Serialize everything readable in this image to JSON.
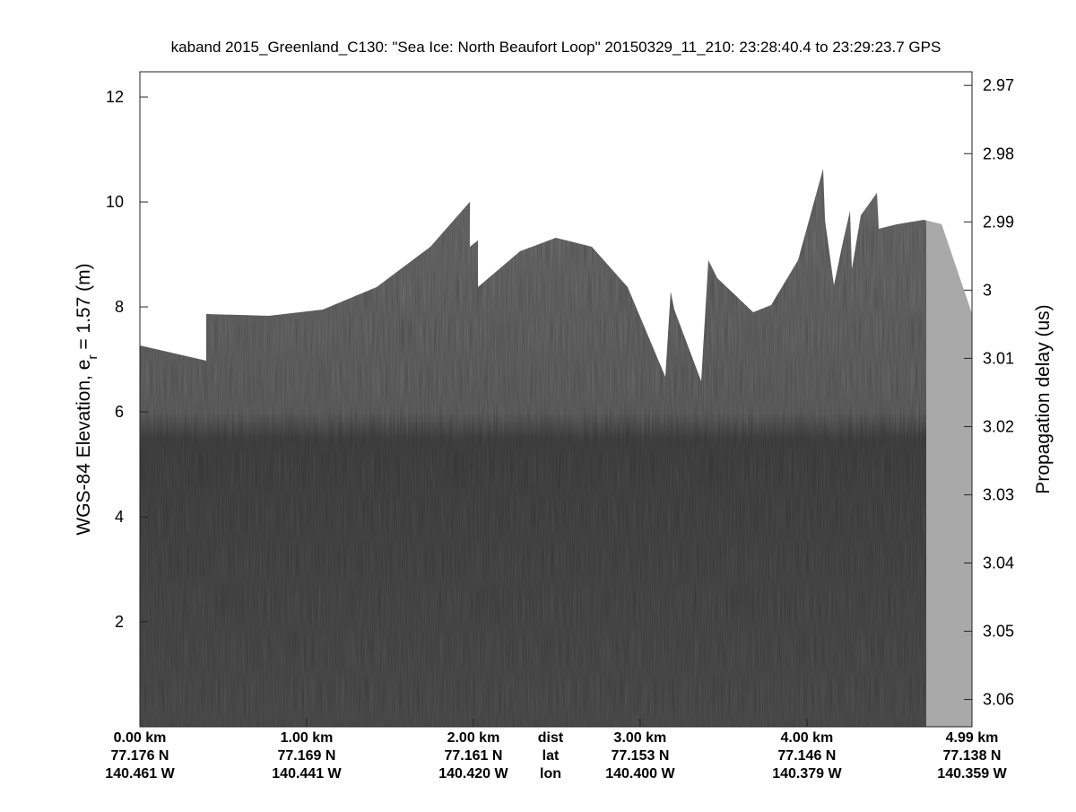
{
  "chart_data": {
    "type": "radargram",
    "title": "kaband 2015_Greenland_C130: \"Sea Ice: North Beaufort Loop\"  20150329_11_210: 23:28:40.4 to 23:29:23.7 GPS",
    "ylabel": {
      "prefix": "WGS-84 Elevation, e",
      "sub": "r",
      "suffix": " = 1.57 (m)"
    },
    "y2label": "Propagation delay (us)",
    "xlim": [
      0,
      4.99
    ],
    "xticks": [
      {
        "value": 0,
        "label": "0.00 km"
      },
      {
        "value": 1,
        "label": "1.00 km"
      },
      {
        "value": 2,
        "label": "2.00 km"
      },
      {
        "value": 3,
        "label": "3.00 km"
      },
      {
        "value": 4,
        "label": "4.00 km"
      },
      {
        "value": 4.99,
        "label": "4.99 km"
      }
    ],
    "xtick_lat": [
      "77.176 N",
      "77.169 N",
      "77.161 N",
      "77.153 N",
      "77.146 N",
      "77.138 N"
    ],
    "xtick_lon": [
      "140.461 W",
      "140.441 W",
      "140.420 W",
      "140.400 W",
      "140.379 W",
      "140.359 W"
    ],
    "row_labels": [
      "dist",
      "lat",
      "lon"
    ],
    "ylim": [
      0,
      12.48
    ],
    "yticks": [
      2,
      4,
      6,
      8,
      10,
      12
    ],
    "y2lim": [
      2.968,
      3.064
    ],
    "y2_reversed": true,
    "y2ticks": [
      2.97,
      2.98,
      2.99,
      3,
      3.01,
      3.02,
      3.03,
      3.04,
      3.05,
      3.06
    ]
  }
}
